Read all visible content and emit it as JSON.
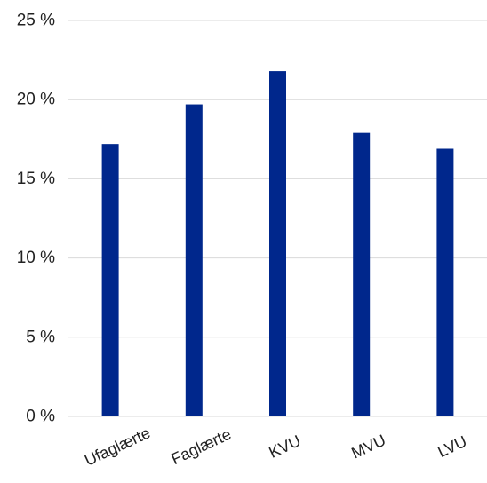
{
  "chart_data": {
    "type": "bar",
    "title": "",
    "xlabel": "",
    "ylabel": "",
    "categories": [
      "Ufaglærte",
      "Faglærte",
      "KVU",
      "MVU",
      "LVU"
    ],
    "values": [
      17.2,
      19.7,
      21.8,
      17.9,
      16.9
    ],
    "ylim": [
      0,
      25
    ],
    "yticks": [
      0,
      5,
      10,
      15,
      20,
      25
    ],
    "ytick_labels": [
      "0 %",
      "5 %",
      "10 %",
      "15 %",
      "20 %",
      "25 %"
    ],
    "grid": true,
    "legend": "none",
    "bar_color": "#00278c",
    "grid_color": "#d9d9d9"
  }
}
